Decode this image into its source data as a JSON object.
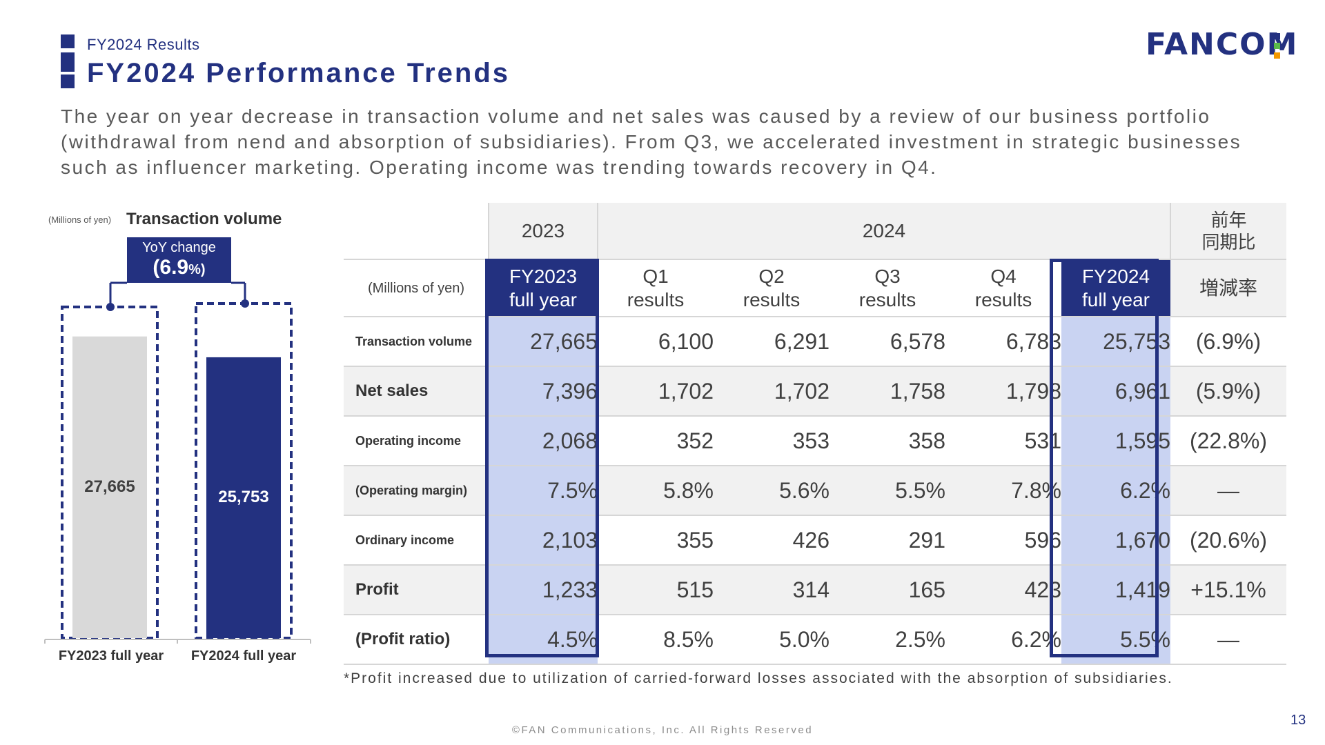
{
  "header": {
    "subtitle": "FY2024 Results",
    "title": "FY2024 Performance Trends",
    "logo_text": "FANCOM",
    "logo_dot_colors": [
      "#233180",
      "#5bbb4a",
      "#f39800"
    ]
  },
  "description": "The year on year decrease in transaction volume and net sales was caused by a review of our business portfolio (withdrawal from nend and absorption of subsidiaries). From Q3, we accelerated investment in strategic businesses such as influencer marketing. Operating income was trending towards recovery in Q4.",
  "chart_data": {
    "type": "bar",
    "title": "Transaction volume",
    "unit": "(Millions of yen)",
    "categories": [
      "FY2023 full year",
      "FY2024 full year"
    ],
    "values": [
      27665,
      25753
    ],
    "value_labels": [
      "27,665",
      "25,753"
    ],
    "colors": [
      "#d9d9d9",
      "#233180"
    ],
    "label_colors": [
      "#404040",
      "#ffffff"
    ],
    "ylim": [
      0,
      31000
    ],
    "annotation": {
      "label": "YoY change",
      "value": "(6.9",
      "unit": "%)"
    }
  },
  "table": {
    "header_years": [
      "2023",
      "2024",
      "前年\n同期比"
    ],
    "unit_label": "(Millions of yen)",
    "columns": [
      "FY2023\nfull year",
      "Q1\nresults",
      "Q2\nresults",
      "Q3\nresults",
      "Q4\nresults",
      "FY2024\nfull year",
      "増減率"
    ],
    "rows": [
      {
        "label": "Transaction volume",
        "values": [
          "27,665",
          "6,100",
          "6,291",
          "6,578",
          "6,783",
          "25,753",
          "(6.9%)"
        ]
      },
      {
        "label": "Net sales",
        "values": [
          "7,396",
          "1,702",
          "1,702",
          "1,758",
          "1,798",
          "6,961",
          "(5.9%)"
        ]
      },
      {
        "label": "Operating income",
        "values": [
          "2,068",
          "352",
          "353",
          "358",
          "531",
          "1,595",
          "(22.8%)"
        ]
      },
      {
        "label": "(Operating margin)",
        "values": [
          "7.5%",
          "5.8%",
          "5.6%",
          "5.5%",
          "7.8%",
          "6.2%",
          "—"
        ]
      },
      {
        "label": "Ordinary income",
        "values": [
          "2,103",
          "355",
          "426",
          "291",
          "596",
          "1,670",
          "(20.6%)"
        ]
      },
      {
        "label": "Profit",
        "values": [
          "1,233",
          "515",
          "314",
          "165",
          "423",
          "1,419",
          "+15.1%"
        ]
      },
      {
        "label": "(Profit ratio)",
        "values": [
          "4.5%",
          "8.5%",
          "5.0%",
          "2.5%",
          "6.2%",
          "5.5%",
          "—"
        ]
      }
    ]
  },
  "note": "*Profit increased due to utilization of carried-forward losses associated with the absorption of subsidiaries.",
  "footer": "©FAN Communications, Inc. All Rights Reserved",
  "page_number": "13"
}
